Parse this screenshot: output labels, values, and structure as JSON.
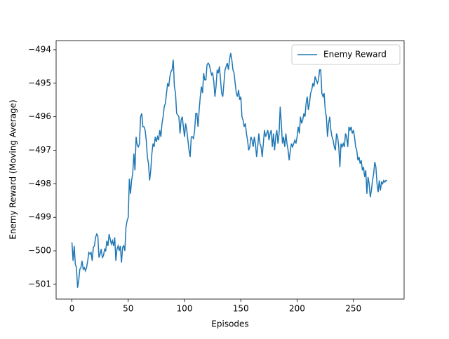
{
  "chart_data": {
    "type": "line",
    "xlabel": "Episodes",
    "ylabel": "Enemy Reward (Moving Average)",
    "legend": "upper right",
    "xlim": [
      -14.05,
      295.05
    ],
    "ylim": [
      -501.44,
      -493.73
    ],
    "xticks": [
      0,
      50,
      100,
      150,
      200,
      250
    ],
    "yticks": [
      {
        "value": -501,
        "label": "−501"
      },
      {
        "value": -500,
        "label": "−500"
      },
      {
        "value": -499,
        "label": "−499"
      },
      {
        "value": -498,
        "label": "−498"
      },
      {
        "value": -497,
        "label": "−497"
      },
      {
        "value": -496,
        "label": "−496"
      },
      {
        "value": -495,
        "label": "−495"
      },
      {
        "value": -494,
        "label": "−494"
      }
    ],
    "x": [
      0,
      1,
      2,
      3,
      4,
      5,
      6,
      7,
      8,
      9,
      10,
      11,
      12,
      13,
      14,
      15,
      16,
      17,
      18,
      19,
      20,
      21,
      22,
      23,
      24,
      25,
      26,
      27,
      28,
      29,
      30,
      31,
      32,
      33,
      34,
      35,
      36,
      37,
      38,
      39,
      40,
      41,
      42,
      43,
      44,
      45,
      46,
      47,
      48,
      49,
      50,
      51,
      52,
      53,
      54,
      55,
      56,
      57,
      58,
      59,
      60,
      61,
      62,
      63,
      64,
      65,
      66,
      67,
      68,
      69,
      70,
      71,
      72,
      73,
      74,
      75,
      76,
      77,
      78,
      79,
      80,
      81,
      82,
      83,
      84,
      85,
      86,
      87,
      88,
      89,
      90,
      91,
      92,
      93,
      94,
      95,
      96,
      97,
      98,
      99,
      100,
      101,
      102,
      103,
      104,
      105,
      106,
      107,
      108,
      109,
      110,
      111,
      112,
      113,
      114,
      115,
      116,
      117,
      118,
      119,
      120,
      121,
      122,
      123,
      124,
      125,
      126,
      127,
      128,
      129,
      130,
      131,
      132,
      133,
      134,
      135,
      136,
      137,
      138,
      139,
      140,
      141,
      142,
      143,
      144,
      145,
      146,
      147,
      148,
      149,
      150,
      151,
      152,
      153,
      154,
      155,
      156,
      157,
      158,
      159,
      160,
      161,
      162,
      163,
      164,
      165,
      166,
      167,
      168,
      169,
      170,
      171,
      172,
      173,
      174,
      175,
      176,
      177,
      178,
      179,
      180,
      181,
      182,
      183,
      184,
      185,
      186,
      187,
      188,
      189,
      190,
      191,
      192,
      193,
      194,
      195,
      196,
      197,
      198,
      199,
      200,
      201,
      202,
      203,
      204,
      205,
      206,
      207,
      208,
      209,
      210,
      211,
      212,
      213,
      214,
      215,
      216,
      217,
      218,
      219,
      220,
      221,
      222,
      223,
      224,
      225,
      226,
      227,
      228,
      229,
      230,
      231,
      232,
      233,
      234,
      235,
      236,
      237,
      238,
      239,
      240,
      241,
      242,
      243,
      244,
      245,
      246,
      247,
      248,
      249,
      250,
      251,
      252,
      253,
      254,
      255,
      256,
      257,
      258,
      259,
      260,
      261,
      262,
      263,
      264,
      265,
      266,
      267,
      268,
      269,
      270,
      271,
      272,
      273,
      274,
      275,
      276,
      277,
      278,
      279,
      280
    ],
    "series": [
      {
        "name": "Enemy Reward",
        "color": "#1f77b4",
        "values": [
          -499.75,
          -500.3,
          -499.85,
          -500.4,
          -500.5,
          -501.1,
          -500.9,
          -500.55,
          -500.5,
          -500.3,
          -500.55,
          -500.5,
          -500.6,
          -500.5,
          -500.3,
          -500.05,
          -500.1,
          -500.05,
          -500.3,
          -499.9,
          -499.85,
          -499.6,
          -499.5,
          -499.55,
          -500.2,
          -500.1,
          -499.95,
          -500.2,
          -500.15,
          -499.95,
          -500.0,
          -499.7,
          -499.85,
          -499.5,
          -499.65,
          -499.8,
          -499.7,
          -499.85,
          -499.6,
          -500.3,
          -499.95,
          -499.85,
          -500.0,
          -499.85,
          -500.35,
          -499.9,
          -499.85,
          -500.0,
          -499.3,
          -499.1,
          -499.0,
          -497.85,
          -498.3,
          -497.9,
          -497.7,
          -497.1,
          -497.6,
          -496.6,
          -496.85,
          -496.9,
          -496.8,
          -496.0,
          -495.9,
          -496.3,
          -496.3,
          -496.4,
          -496.7,
          -497.2,
          -497.4,
          -497.9,
          -497.6,
          -497.1,
          -496.8,
          -496.9,
          -496.6,
          -496.75,
          -496.6,
          -496.7,
          -496.4,
          -496.6,
          -496.2,
          -496.0,
          -495.7,
          -495.6,
          -495.3,
          -495.0,
          -495.1,
          -494.8,
          -494.65,
          -494.6,
          -494.3,
          -495.1,
          -495.3,
          -495.9,
          -495.95,
          -496.0,
          -496.5,
          -496.1,
          -496.0,
          -496.3,
          -496.6,
          -496.2,
          -496.4,
          -496.7,
          -497.0,
          -497.2,
          -496.6,
          -496.6,
          -496.65,
          -496.4,
          -495.9,
          -495.9,
          -496.3,
          -495.8,
          -495.4,
          -495.1,
          -495.3,
          -494.7,
          -494.9,
          -494.9,
          -494.45,
          -494.4,
          -494.45,
          -494.6,
          -494.75,
          -494.7,
          -494.95,
          -495.4,
          -495.1,
          -494.6,
          -494.7,
          -494.5,
          -494.9,
          -495.3,
          -495.4,
          -495.0,
          -494.6,
          -494.5,
          -494.4,
          -494.6,
          -494.3,
          -494.1,
          -494.3,
          -494.6,
          -494.7,
          -495.0,
          -495.3,
          -495.4,
          -495.2,
          -495.5,
          -495.4,
          -496.0,
          -496.1,
          -496.3,
          -496.2,
          -496.5,
          -496.7,
          -497.0,
          -496.9,
          -496.6,
          -496.7,
          -496.9,
          -496.6,
          -496.8,
          -497.2,
          -496.9,
          -496.5,
          -496.8,
          -496.9,
          -497.2,
          -496.8,
          -496.4,
          -496.6,
          -496.5,
          -496.4,
          -496.7,
          -496.5,
          -496.4,
          -496.9,
          -496.5,
          -497.0,
          -496.6,
          -496.4,
          -496.8,
          -496.5,
          -495.7,
          -496.2,
          -496.8,
          -496.6,
          -496.9,
          -496.5,
          -496.8,
          -497.0,
          -497.3,
          -497.0,
          -496.8,
          -496.9,
          -496.8,
          -496.7,
          -496.8,
          -496.6,
          -496.3,
          -496.5,
          -496.0,
          -496.2,
          -496.1,
          -495.9,
          -496.0,
          -495.6,
          -495.4,
          -495.8,
          -495.6,
          -495.3,
          -495.2,
          -495.0,
          -495.1,
          -494.8,
          -494.9,
          -495.0,
          -494.9,
          -494.6,
          -494.6,
          -495.3,
          -495.4,
          -495.3,
          -495.8,
          -496.0,
          -496.6,
          -496.2,
          -496.0,
          -496.4,
          -496.6,
          -496.7,
          -496.9,
          -497.0,
          -496.5,
          -496.6,
          -496.9,
          -497.5,
          -496.8,
          -496.9,
          -496.8,
          -496.9,
          -496.5,
          -496.6,
          -496.9,
          -496.3,
          -496.4,
          -496.3,
          -496.5,
          -496.4,
          -496.6,
          -496.9,
          -497.0,
          -497.3,
          -497.2,
          -497.4,
          -497.3,
          -497.6,
          -497.5,
          -497.8,
          -497.6,
          -498.3,
          -497.8,
          -498.0,
          -498.4,
          -498.2,
          -497.9,
          -497.7,
          -497.35,
          -497.5,
          -498.0,
          -498.25,
          -497.9,
          -498.2,
          -497.95,
          -498.0,
          -497.9,
          -497.95,
          -497.9,
          -497.9
        ]
      }
    ]
  }
}
